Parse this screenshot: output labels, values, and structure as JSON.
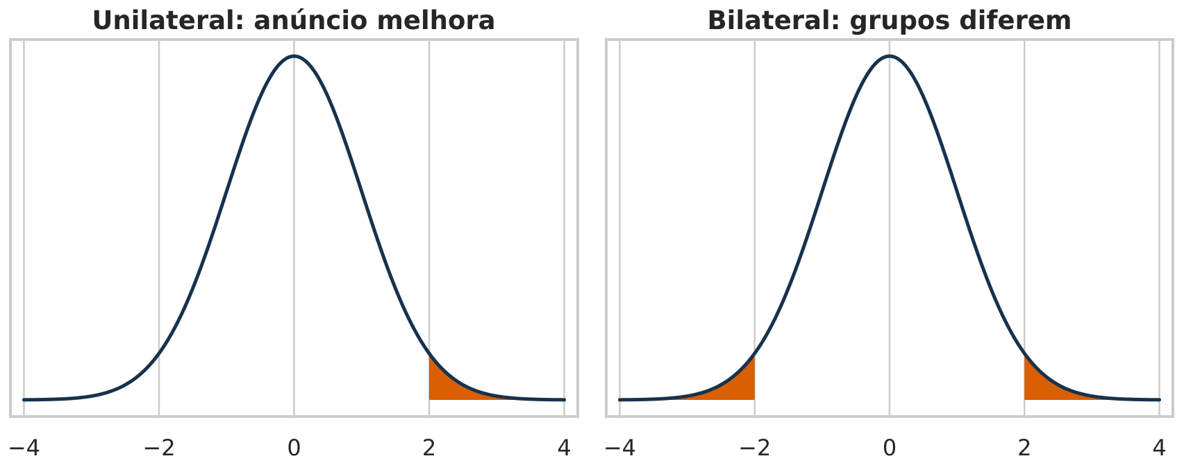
{
  "chart_data": [
    {
      "type": "area",
      "title": "Unilateral: anúncio melhora",
      "xlabel": "",
      "ylabel": "",
      "xlim": [
        -4.2,
        4.2
      ],
      "xticks": [
        -4,
        -2,
        0,
        2,
        4
      ],
      "xtick_labels": [
        "−4",
        "−2",
        "0",
        "2",
        "4"
      ],
      "grid": "vertical",
      "series": [
        {
          "kind": "normal pdf",
          "mean": 0,
          "sd": 1,
          "x_range": [
            -4,
            4
          ],
          "color": "#17324d"
        }
      ],
      "shaded_regions": [
        {
          "x_range": [
            2,
            4
          ],
          "color": "#d95f02"
        }
      ]
    },
    {
      "type": "area",
      "title": "Bilateral: grupos diferem",
      "xlabel": "",
      "ylabel": "",
      "xlim": [
        -4.2,
        4.2
      ],
      "xticks": [
        -4,
        -2,
        0,
        2,
        4
      ],
      "xtick_labels": [
        "−4",
        "−2",
        "0",
        "2",
        "4"
      ],
      "grid": "vertical",
      "series": [
        {
          "kind": "normal pdf",
          "mean": 0,
          "sd": 1,
          "x_range": [
            -4,
            4
          ],
          "color": "#17324d"
        }
      ],
      "shaded_regions": [
        {
          "x_range": [
            -4,
            -2
          ],
          "color": "#d95f02"
        },
        {
          "x_range": [
            2,
            4
          ],
          "color": "#d95f02"
        }
      ]
    }
  ]
}
